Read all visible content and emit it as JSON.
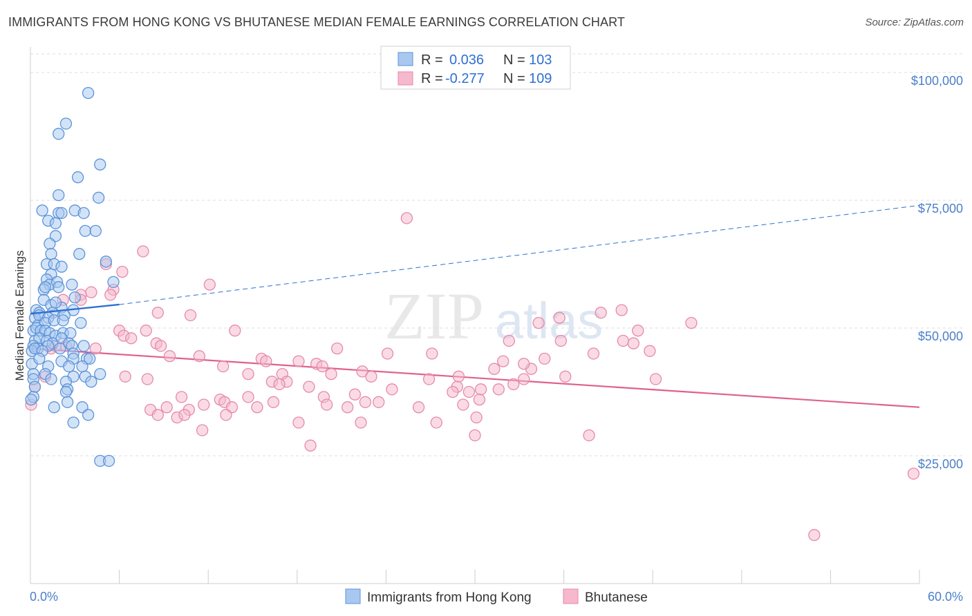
{
  "title": "IMMIGRANTS FROM HONG KONG VS BHUTANESE MEDIAN FEMALE EARNINGS CORRELATION CHART",
  "source": "Source: ZipAtlas.com",
  "watermark": {
    "zip": "ZIP",
    "atlas": "atlas"
  },
  "colors": {
    "blue_fill": "#a8c8f0",
    "blue_stroke": "#5b93d8",
    "blue_line": "#2f6fd1",
    "pink_fill": "#f6b8cc",
    "pink_stroke": "#e58aa8",
    "pink_line": "#e0608d",
    "grid": "#dddddd",
    "tick_text": "#4a7fc9"
  },
  "legend_box": {
    "rows": [
      {
        "r_label": "R =",
        "r_value": "0.036",
        "n_label": "N =",
        "n_value": "103"
      },
      {
        "r_label": "R =",
        "r_value": "-0.277",
        "n_label": "N =",
        "n_value": "109"
      }
    ]
  },
  "chart_data": {
    "type": "scatter",
    "ylabel": "Median Female Earnings",
    "xlim": [
      0,
      60
    ],
    "ylim": [
      0,
      105000
    ],
    "x_tick_labels": {
      "left": "0.0%",
      "right": "60.0%"
    },
    "y_ticks": [
      {
        "value": 25000,
        "label": "$25,000"
      },
      {
        "value": 50000,
        "label": "$50,000"
      },
      {
        "value": 75000,
        "label": "$75,000"
      },
      {
        "value": 100000,
        "label": "$100,000"
      }
    ],
    "series": [
      {
        "name": "Immigrants from Hong Kong",
        "trend": {
          "x0": 0,
          "y0": 52800,
          "x1": 6,
          "y1": 54600,
          "x_end": 60,
          "y_end": 74000
        },
        "points": [
          [
            3.9,
            96000
          ],
          [
            2.4,
            90000
          ],
          [
            1.9,
            88000
          ],
          [
            4.7,
            82000
          ],
          [
            3.2,
            79500
          ],
          [
            1.9,
            76000
          ],
          [
            4.6,
            75500
          ],
          [
            0.8,
            73000
          ],
          [
            1.9,
            72500
          ],
          [
            2.1,
            72500
          ],
          [
            3.0,
            73000
          ],
          [
            3.6,
            72500
          ],
          [
            1.2,
            71000
          ],
          [
            1.7,
            70500
          ],
          [
            3.7,
            69000
          ],
          [
            4.4,
            69000
          ],
          [
            1.7,
            68000
          ],
          [
            1.3,
            66500
          ],
          [
            1.4,
            64500
          ],
          [
            3.3,
            64500
          ],
          [
            1.1,
            62500
          ],
          [
            1.6,
            62500
          ],
          [
            2.1,
            62000
          ],
          [
            5.1,
            63000
          ],
          [
            1.4,
            60500
          ],
          [
            1.1,
            59500
          ],
          [
            1.3,
            58500
          ],
          [
            1.8,
            59000
          ],
          [
            0.9,
            57500
          ],
          [
            1.0,
            58000
          ],
          [
            2.8,
            58500
          ],
          [
            5.6,
            59000
          ],
          [
            1.9,
            58000
          ],
          [
            0.9,
            55500
          ],
          [
            1.4,
            54500
          ],
          [
            2.1,
            54000
          ],
          [
            0.4,
            53500
          ],
          [
            0.6,
            53000
          ],
          [
            1.5,
            53000
          ],
          [
            2.9,
            53500
          ],
          [
            0.3,
            52000
          ],
          [
            0.6,
            52500
          ],
          [
            1.2,
            52000
          ],
          [
            2.3,
            52500
          ],
          [
            0.5,
            50500
          ],
          [
            1.0,
            51000
          ],
          [
            1.6,
            51500
          ],
          [
            2.2,
            51500
          ],
          [
            3.4,
            51000
          ],
          [
            0.2,
            49500
          ],
          [
            0.4,
            50000
          ],
          [
            0.7,
            49500
          ],
          [
            1.0,
            49500
          ],
          [
            1.3,
            49000
          ],
          [
            1.7,
            48500
          ],
          [
            2.2,
            49000
          ],
          [
            2.7,
            49000
          ],
          [
            0.3,
            47500
          ],
          [
            0.6,
            48000
          ],
          [
            1.1,
            47500
          ],
          [
            1.5,
            47000
          ],
          [
            2.1,
            48000
          ],
          [
            2.6,
            47000
          ],
          [
            0.2,
            46500
          ],
          [
            0.5,
            46000
          ],
          [
            1.2,
            46500
          ],
          [
            2.0,
            46000
          ],
          [
            2.8,
            46500
          ],
          [
            3.6,
            46500
          ],
          [
            0.1,
            45500
          ],
          [
            0.3,
            46000
          ],
          [
            0.8,
            45500
          ],
          [
            2.9,
            45000
          ],
          [
            2.1,
            43500
          ],
          [
            2.9,
            44000
          ],
          [
            3.8,
            44000
          ],
          [
            4.0,
            44000
          ],
          [
            1.2,
            42500
          ],
          [
            2.6,
            42500
          ],
          [
            3.5,
            42500
          ],
          [
            0.1,
            43000
          ],
          [
            0.2,
            41000
          ],
          [
            1.0,
            41000
          ],
          [
            2.9,
            40500
          ],
          [
            3.7,
            40500
          ],
          [
            4.7,
            41000
          ],
          [
            0.2,
            40000
          ],
          [
            1.4,
            40000
          ],
          [
            2.4,
            39500
          ],
          [
            4.1,
            39500
          ],
          [
            0.3,
            38500
          ],
          [
            2.5,
            38000
          ],
          [
            2.4,
            37500
          ],
          [
            0.2,
            36500
          ],
          [
            2.5,
            35500
          ],
          [
            1.6,
            34500
          ],
          [
            3.5,
            34500
          ],
          [
            3.9,
            33000
          ],
          [
            2.9,
            31500
          ],
          [
            4.7,
            24000
          ],
          [
            5.3,
            24000
          ],
          [
            0.05,
            36000
          ],
          [
            0.6,
            44000
          ],
          [
            1.7,
            55000
          ],
          [
            3.0,
            56000
          ]
        ]
      },
      {
        "name": "Bhutanese",
        "trend": {
          "x0": 0,
          "y0": 46000,
          "x1": 60,
          "y1": 34500
        },
        "points": [
          [
            25.4,
            71500
          ],
          [
            7.6,
            65000
          ],
          [
            5.1,
            62500
          ],
          [
            6.2,
            61000
          ],
          [
            5.6,
            57500
          ],
          [
            12.1,
            58500
          ],
          [
            4.1,
            57000
          ],
          [
            5.4,
            56500
          ],
          [
            3.4,
            56500
          ],
          [
            2.2,
            55500
          ],
          [
            3.4,
            55500
          ],
          [
            8.6,
            53000
          ],
          [
            10.8,
            52500
          ],
          [
            35.7,
            52000
          ],
          [
            38.5,
            53000
          ],
          [
            39.9,
            53500
          ],
          [
            34.3,
            51000
          ],
          [
            44.6,
            51000
          ],
          [
            41.0,
            49500
          ],
          [
            13.8,
            49500
          ],
          [
            6.0,
            49500
          ],
          [
            7.8,
            49500
          ],
          [
            6.3,
            48500
          ],
          [
            6.8,
            48000
          ],
          [
            8.5,
            47000
          ],
          [
            8.8,
            46500
          ],
          [
            2.4,
            46500
          ],
          [
            1.4,
            46000
          ],
          [
            4.4,
            46000
          ],
          [
            20.7,
            46000
          ],
          [
            32.3,
            47500
          ],
          [
            35.8,
            47500
          ],
          [
            40.0,
            47500
          ],
          [
            40.7,
            47000
          ],
          [
            41.8,
            45500
          ],
          [
            38.0,
            45000
          ],
          [
            27.1,
            45000
          ],
          [
            24.1,
            45000
          ],
          [
            9.4,
            44500
          ],
          [
            11.4,
            44500
          ],
          [
            15.6,
            44000
          ],
          [
            15.9,
            43500
          ],
          [
            18.1,
            43500
          ],
          [
            19.3,
            43000
          ],
          [
            19.7,
            42500
          ],
          [
            13.0,
            42500
          ],
          [
            31.9,
            43500
          ],
          [
            33.8,
            42000
          ],
          [
            31.3,
            42000
          ],
          [
            33.3,
            43000
          ],
          [
            34.7,
            44000
          ],
          [
            22.4,
            41500
          ],
          [
            20.3,
            41000
          ],
          [
            14.7,
            41000
          ],
          [
            17.0,
            41000
          ],
          [
            6.4,
            40500
          ],
          [
            7.9,
            40000
          ],
          [
            23.0,
            40500
          ],
          [
            26.9,
            40000
          ],
          [
            28.9,
            40500
          ],
          [
            32.6,
            39000
          ],
          [
            33.3,
            40000
          ],
          [
            36.1,
            40500
          ],
          [
            42.2,
            40000
          ],
          [
            16.3,
            39500
          ],
          [
            17.3,
            39500
          ],
          [
            16.8,
            39000
          ],
          [
            18.8,
            38500
          ],
          [
            24.4,
            38000
          ],
          [
            28.8,
            38500
          ],
          [
            30.4,
            38000
          ],
          [
            28.5,
            37500
          ],
          [
            29.6,
            37500
          ],
          [
            31.6,
            38000
          ],
          [
            10.2,
            36500
          ],
          [
            14.7,
            36500
          ],
          [
            19.8,
            36500
          ],
          [
            21.9,
            37000
          ],
          [
            12.8,
            36000
          ],
          [
            13.1,
            35500
          ],
          [
            16.4,
            35500
          ],
          [
            20.0,
            35000
          ],
          [
            21.4,
            34500
          ],
          [
            22.6,
            35500
          ],
          [
            23.5,
            35500
          ],
          [
            26.2,
            34500
          ],
          [
            29.2,
            35000
          ],
          [
            30.3,
            36000
          ],
          [
            8.1,
            34000
          ],
          [
            9.2,
            34500
          ],
          [
            10.7,
            34000
          ],
          [
            11.7,
            35000
          ],
          [
            13.6,
            34500
          ],
          [
            15.3,
            34500
          ],
          [
            8.6,
            33000
          ],
          [
            9.9,
            32500
          ],
          [
            10.4,
            33000
          ],
          [
            13.2,
            33000
          ],
          [
            18.1,
            31500
          ],
          [
            22.3,
            31500
          ],
          [
            27.4,
            31500
          ],
          [
            30.1,
            32500
          ],
          [
            11.6,
            30000
          ],
          [
            30.0,
            29000
          ],
          [
            37.7,
            29000
          ],
          [
            18.9,
            27000
          ],
          [
            59.6,
            21500
          ],
          [
            52.9,
            9500
          ],
          [
            0.05,
            35000
          ],
          [
            1.0,
            40500
          ],
          [
            0.3,
            38500
          ],
          [
            1.7,
            46500
          ]
        ]
      }
    ]
  },
  "bottom_legend": {
    "series_a": "Immigrants from Hong Kong",
    "series_b": "Bhutanese"
  }
}
